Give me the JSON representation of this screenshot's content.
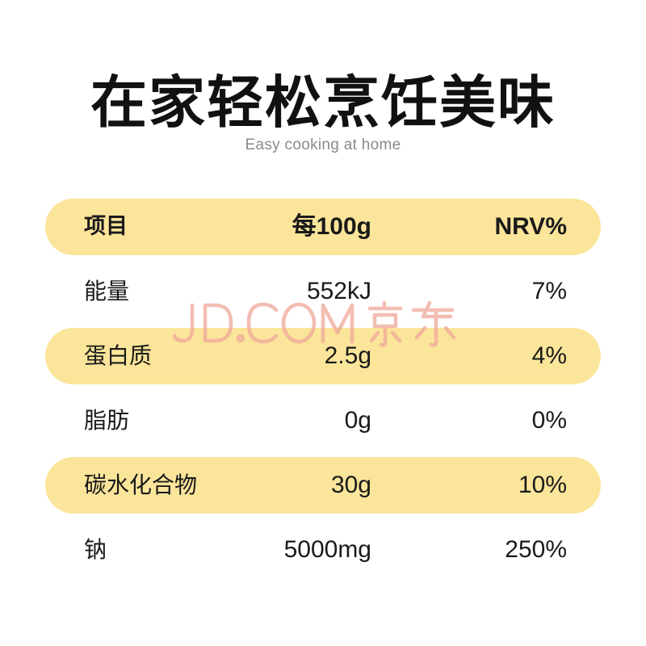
{
  "title": "在家轻松烹饪美味",
  "subtitle": "Easy cooking at home",
  "table": {
    "header": {
      "item": "项目",
      "per100g": "每100g",
      "nrv": "NRV%"
    },
    "rows": [
      {
        "item": "能量",
        "per100g": "552kJ",
        "nrv": "7%"
      },
      {
        "item": "蛋白质",
        "per100g": "2.5g",
        "nrv": "4%"
      },
      {
        "item": "脂肪",
        "per100g": "0g",
        "nrv": "0%"
      },
      {
        "item": "碳水化合物",
        "per100g": "30g",
        "nrv": "10%"
      },
      {
        "item": "钠",
        "per100g": "5000mg",
        "nrv": "250%"
      }
    ]
  },
  "watermark": {
    "text": "JD.COM 京东",
    "color": "#f0a89a"
  },
  "colors": {
    "row_highlight": "#fbe59a",
    "text": "#1a1a1a",
    "subtitle": "#8a8a8a"
  }
}
